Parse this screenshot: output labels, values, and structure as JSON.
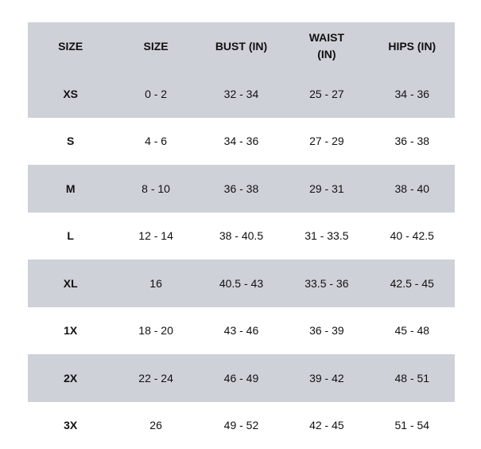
{
  "headers": [
    "SIZE",
    "SIZE",
    "BUST (IN)",
    "WAIST (IN)",
    "HIPS (IN)"
  ],
  "colors": {
    "shaded_row": "#ced1d8",
    "plain_row": "#ffffff"
  },
  "rows": [
    [
      "XS",
      "0 - 2",
      "32 - 34",
      "25 - 27",
      "34 - 36"
    ],
    [
      "S",
      "4 - 6",
      "34 - 36",
      "27 - 29",
      "36 - 38"
    ],
    [
      "M",
      "8 - 10",
      "36 - 38",
      "29 - 31",
      "38 - 40"
    ],
    [
      "L",
      "12 - 14",
      "38 - 40.5",
      "31 - 33.5",
      "40 - 42.5"
    ],
    [
      "XL",
      "16",
      "40.5 - 43",
      "33.5 - 36",
      "42.5 - 45"
    ],
    [
      "1X",
      "18 - 20",
      "43 - 46",
      "36 - 39",
      "45 - 48"
    ],
    [
      "2X",
      "22 - 24",
      "46 - 49",
      "39 - 42",
      "48 - 51"
    ],
    [
      "3X",
      "26",
      "49 - 52",
      "42 - 45",
      "51 - 54"
    ]
  ]
}
